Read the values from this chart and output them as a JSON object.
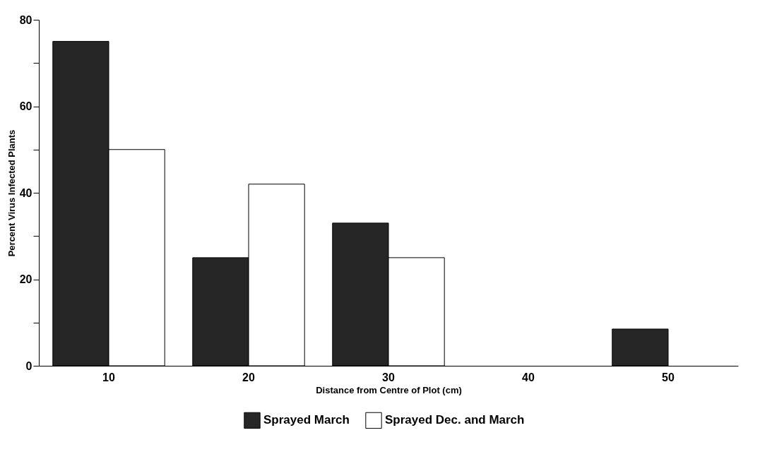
{
  "chart_data": {
    "type": "bar",
    "xlabel": "Distance from Centre of Plot (cm)",
    "ylabel": "Percent Virus Infected Plants",
    "categories": [
      "10",
      "20",
      "30",
      "40",
      "50"
    ],
    "series": [
      {
        "name": "Sprayed March",
        "color": "#262626",
        "values": [
          75,
          25,
          33,
          null,
          8.5
        ]
      },
      {
        "name": "Sprayed Dec. and March",
        "color": "#ffffff",
        "values": [
          50,
          42,
          25,
          null,
          null
        ]
      }
    ],
    "ylim": [
      0,
      80
    ],
    "yticks": [
      0,
      {
        "value": 10,
        "label": null
      },
      20,
      {
        "value": 30,
        "label": null
      },
      40,
      {
        "value": 50,
        "label": null
      },
      60,
      {
        "value": 70,
        "label": null
      },
      80
    ],
    "grid": false,
    "legend": "bottom"
  }
}
